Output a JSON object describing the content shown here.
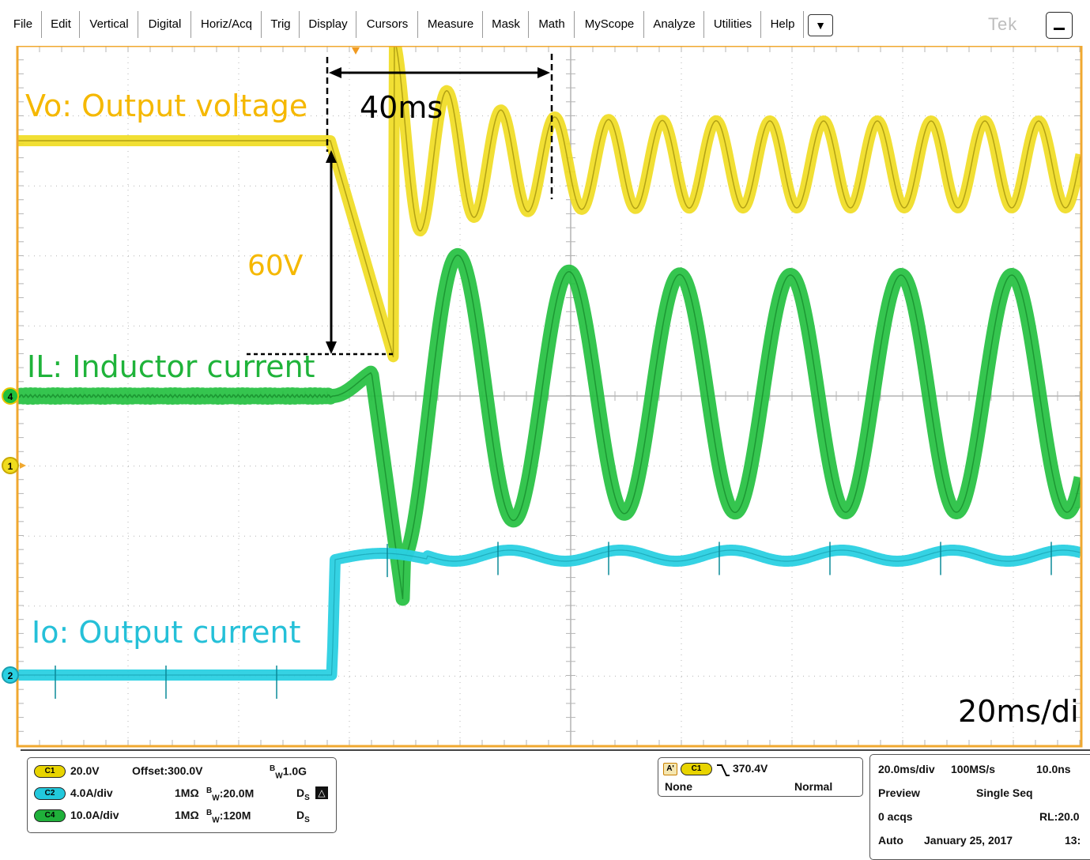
{
  "menu": {
    "items": [
      "File",
      "Edit",
      "Vertical",
      "Digital",
      "Horiz/Acq",
      "Trig",
      "Display",
      "Cursors",
      "Measure",
      "Mask",
      "Math",
      "MyScope",
      "Analyze",
      "Utilities",
      "Help"
    ],
    "dropdown_icon": "triangle-down-icon",
    "brand": "Tek",
    "minimize_icon": "minimize-icon"
  },
  "annotations": {
    "vo_label": "Vo: Output voltage",
    "il_label": "IL: Inductor current",
    "io_label": "Io: Output current",
    "time_marker": "40ms",
    "voltage_marker": "60V",
    "timebase": "20ms/di"
  },
  "channel_markers": {
    "ch4": "4",
    "ch1": "1",
    "ch2": "2"
  },
  "channels": [
    {
      "badge": "C1",
      "scale": "20.0V",
      "offset": "Offset:300.0V",
      "impedance": "",
      "bandwidth": "1.0G",
      "color": "#e8d400"
    },
    {
      "badge": "C2",
      "scale": "4.0A/div",
      "offset": "",
      "impedance": "1MΩ",
      "bandwidth": ":20.0M",
      "color": "#22c8dc"
    },
    {
      "badge": "C4",
      "scale": "10.0A/div",
      "offset": "",
      "impedance": "1MΩ",
      "bandwidth": ":120M",
      "color": "#1fb03a"
    }
  ],
  "bw_prefix": "B",
  "bw_sub": "W",
  "ds_label": "D",
  "ds_sub": "S",
  "trigger": {
    "a_badge": "A'",
    "source": "C1",
    "slope_icon": "falling-edge-icon",
    "level": "370.4V",
    "coupling": "None",
    "mode": "Normal"
  },
  "acquisition": {
    "timebase": "20.0ms/div",
    "sample_rate": "100MS/s",
    "time_per_pt": "10.0ns",
    "state": "Preview",
    "trigger_mode": "Single Seq",
    "acqs": "0 acqs",
    "record_length": "RL:20.0",
    "run_mode": "Auto",
    "date": "January 25, 2017",
    "time": "13:"
  },
  "colors": {
    "vo": "#f0dc1e",
    "vo_text": "#f5b800",
    "il": "#1fbf3c",
    "io": "#2ad0e2",
    "grid": "#b4b4b4",
    "frame": "#f0a830"
  }
}
